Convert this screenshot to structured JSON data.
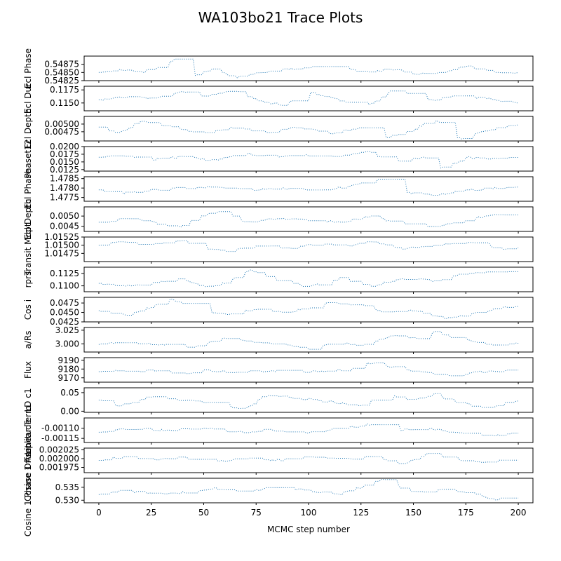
{
  "figure": {
    "title": "WA103bo21 Trace Plots",
    "xlabel": "MCMC step number"
  },
  "colors": {
    "trace": "#1f77b4",
    "frame": "#000000"
  },
  "chart_data": {
    "type": "line",
    "title": "WA103bo21 Trace Plots",
    "xlabel": "MCMC step number",
    "x_ticks": [
      "0",
      "25",
      "50",
      "75",
      "100",
      "125",
      "150",
      "175",
      "200"
    ],
    "xlim": [
      -7,
      207
    ],
    "line_style": "dotted",
    "grid": false,
    "panels": [
      {
        "ylabel": "Ecl Phase",
        "ylim": [
          0.54825,
          0.549
        ],
        "yticks": [
          "0.54825",
          "0.54850",
          "0.54875"
        ],
        "anchors": [
          [
            0,
            0.5485
          ],
          [
            10,
            0.5486
          ],
          [
            20,
            0.5485
          ],
          [
            30,
            0.5487
          ],
          [
            38,
            0.549
          ],
          [
            45,
            0.5484
          ],
          [
            55,
            0.5486
          ],
          [
            65,
            0.5483
          ],
          [
            75,
            0.5485
          ],
          [
            90,
            0.5486
          ],
          [
            110,
            0.5487
          ],
          [
            125,
            0.5485
          ],
          [
            140,
            0.5486
          ],
          [
            152,
            0.54845
          ],
          [
            165,
            0.5485
          ],
          [
            175,
            0.5487
          ],
          [
            190,
            0.5485
          ],
          [
            200,
            0.5485
          ]
        ]
      },
      {
        "ylabel": "Ecl Dur",
        "ylim": [
          0.1135,
          0.1182
        ],
        "yticks": [
          "0.1150",
          "0.1175"
        ],
        "anchors": [
          [
            0,
            0.1155
          ],
          [
            12,
            0.1162
          ],
          [
            25,
            0.1158
          ],
          [
            40,
            0.1172
          ],
          [
            50,
            0.1162
          ],
          [
            65,
            0.1175
          ],
          [
            75,
            0.1155
          ],
          [
            88,
            0.1145
          ],
          [
            100,
            0.117
          ],
          [
            115,
            0.1155
          ],
          [
            128,
            0.1142
          ],
          [
            140,
            0.1175
          ],
          [
            150,
            0.1165
          ],
          [
            160,
            0.1155
          ],
          [
            170,
            0.1165
          ],
          [
            185,
            0.1158
          ],
          [
            200,
            0.115
          ]
        ]
      },
      {
        "ylabel": "Ecl Depth",
        "ylim": [
          0.00445,
          0.00525
        ],
        "yticks": [
          "0.00475",
          "0.00500"
        ],
        "anchors": [
          [
            0,
            0.0049
          ],
          [
            10,
            0.0047
          ],
          [
            20,
            0.0051
          ],
          [
            35,
            0.0049
          ],
          [
            50,
            0.0047
          ],
          [
            65,
            0.0049
          ],
          [
            78,
            0.0047
          ],
          [
            95,
            0.0049
          ],
          [
            110,
            0.0047
          ],
          [
            128,
            0.0049
          ],
          [
            135,
            0.0045
          ],
          [
            150,
            0.0048
          ],
          [
            160,
            0.0052
          ],
          [
            172,
            0.0045
          ],
          [
            185,
            0.0048
          ],
          [
            200,
            0.005
          ]
        ]
      },
      {
        "ylabel": "Phaset12",
        "ylim": [
          0.012,
          0.02
        ],
        "yticks": [
          "0.0125",
          "0.0150",
          "0.0175",
          "0.0200"
        ],
        "anchors": [
          [
            0,
            0.0165
          ],
          [
            10,
            0.0172
          ],
          [
            25,
            0.0158
          ],
          [
            40,
            0.0168
          ],
          [
            55,
            0.0155
          ],
          [
            70,
            0.0178
          ],
          [
            85,
            0.0165
          ],
          [
            100,
            0.0172
          ],
          [
            115,
            0.0168
          ],
          [
            128,
            0.0185
          ],
          [
            140,
            0.0148
          ],
          [
            155,
            0.0165
          ],
          [
            163,
            0.0128
          ],
          [
            175,
            0.0165
          ],
          [
            190,
            0.0158
          ],
          [
            200,
            0.017
          ]
        ]
      },
      {
        "ylabel": "Ecl Phase",
        "ylim": [
          1.4773,
          1.4786
        ],
        "yticks": [
          "1.4775",
          "1.4780",
          "1.4785"
        ],
        "anchors": [
          [
            0,
            1.4779
          ],
          [
            10,
            1.4777
          ],
          [
            25,
            1.4779
          ],
          [
            40,
            1.478
          ],
          [
            55,
            1.4781
          ],
          [
            70,
            1.4779
          ],
          [
            85,
            1.478
          ],
          [
            100,
            1.4779
          ],
          [
            115,
            1.478
          ],
          [
            132,
            1.4785
          ],
          [
            145,
            1.4778
          ],
          [
            160,
            1.4776
          ],
          [
            175,
            1.4779
          ],
          [
            190,
            1.478
          ],
          [
            200,
            1.4781
          ]
        ]
      },
      {
        "ylabel": "Ecl Depth",
        "ylim": [
          0.00425,
          0.00545
        ],
        "yticks": [
          "0.0045",
          "0.0050"
        ],
        "anchors": [
          [
            0,
            0.0047
          ],
          [
            15,
            0.0049
          ],
          [
            30,
            0.0046
          ],
          [
            38,
            0.0044
          ],
          [
            45,
            0.0049
          ],
          [
            58,
            0.0053
          ],
          [
            70,
            0.0047
          ],
          [
            85,
            0.0049
          ],
          [
            100,
            0.0048
          ],
          [
            115,
            0.0047
          ],
          [
            130,
            0.005
          ],
          [
            145,
            0.0046
          ],
          [
            160,
            0.0045
          ],
          [
            175,
            0.0048
          ],
          [
            190,
            0.0051
          ],
          [
            200,
            0.005
          ]
        ]
      },
      {
        "ylabel": "Transit Mdpt",
        "ylim": [
          1.0145,
          1.01525
        ],
        "yticks": [
          "1.01475",
          "1.01500",
          "1.01525"
        ],
        "anchors": [
          [
            0,
            1.015
          ],
          [
            10,
            1.0151
          ],
          [
            25,
            1.015
          ],
          [
            40,
            1.01515
          ],
          [
            50,
            1.0149
          ],
          [
            60,
            1.0148
          ],
          [
            75,
            1.015
          ],
          [
            90,
            1.0149
          ],
          [
            105,
            1.01505
          ],
          [
            120,
            1.015
          ],
          [
            130,
            1.0151
          ],
          [
            145,
            1.0149
          ],
          [
            160,
            1.015
          ],
          [
            175,
            1.0151
          ],
          [
            190,
            1.0149
          ],
          [
            200,
            1.0149
          ]
        ]
      },
      {
        "ylabel": "rprs",
        "ylim": [
          0.1088,
          0.1138
        ],
        "yticks": [
          "0.1100",
          "0.1125"
        ],
        "anchors": [
          [
            0,
            0.1105
          ],
          [
            10,
            0.11
          ],
          [
            25,
            0.1105
          ],
          [
            40,
            0.1115
          ],
          [
            50,
            0.1098
          ],
          [
            60,
            0.1105
          ],
          [
            72,
            0.1132
          ],
          [
            85,
            0.111
          ],
          [
            100,
            0.1098
          ],
          [
            115,
            0.1115
          ],
          [
            130,
            0.11
          ],
          [
            145,
            0.1115
          ],
          [
            160,
            0.111
          ],
          [
            175,
            0.1125
          ],
          [
            190,
            0.1128
          ],
          [
            200,
            0.113
          ]
        ]
      },
      {
        "ylabel": "Cos i",
        "ylim": [
          0.0425,
          0.049
        ],
        "yticks": [
          "0.0425",
          "0.0450",
          "0.0475"
        ],
        "anchors": [
          [
            0,
            0.0455
          ],
          [
            10,
            0.044
          ],
          [
            20,
            0.0455
          ],
          [
            35,
            0.0485
          ],
          [
            45,
            0.046
          ],
          [
            60,
            0.0445
          ],
          [
            75,
            0.046
          ],
          [
            90,
            0.045
          ],
          [
            110,
            0.0475
          ],
          [
            125,
            0.047
          ],
          [
            135,
            0.045
          ],
          [
            150,
            0.0455
          ],
          [
            165,
            0.0435
          ],
          [
            180,
            0.0448
          ],
          [
            192,
            0.0465
          ],
          [
            200,
            0.0465
          ]
        ]
      },
      {
        "ylabel": "a/Rs",
        "ylim": [
          2.985,
          3.03
        ],
        "yticks": [
          "3.000",
          "3.025"
        ],
        "anchors": [
          [
            0,
            3.0
          ],
          [
            15,
            3.002
          ],
          [
            30,
            2.998
          ],
          [
            45,
            2.993
          ],
          [
            60,
            3.01
          ],
          [
            75,
            3.002
          ],
          [
            90,
            2.998
          ],
          [
            100,
            2.99
          ],
          [
            115,
            3.005
          ],
          [
            125,
            2.995
          ],
          [
            140,
            3.015
          ],
          [
            155,
            3.008
          ],
          [
            160,
            3.022
          ],
          [
            170,
            3.01
          ],
          [
            185,
            2.998
          ],
          [
            200,
            3.001
          ]
        ]
      },
      {
        "ylabel": "Flux",
        "ylim": [
          9165,
          9193
        ],
        "yticks": [
          "9170",
          "9180",
          "9190"
        ],
        "anchors": [
          [
            0,
            9178
          ],
          [
            15,
            9178
          ],
          [
            25,
            9178
          ],
          [
            40,
            9175
          ],
          [
            50,
            9178
          ],
          [
            65,
            9176
          ],
          [
            80,
            9178
          ],
          [
            100,
            9177
          ],
          [
            120,
            9179
          ],
          [
            130,
            9188
          ],
          [
            140,
            9182
          ],
          [
            155,
            9176
          ],
          [
            170,
            9172
          ],
          [
            180,
            9177
          ],
          [
            200,
            9178
          ]
        ]
      },
      {
        "ylabel": "LD c1",
        "ylim": [
          -0.003,
          0.063
        ],
        "yticks": [
          "0.00",
          "0.05"
        ],
        "anchors": [
          [
            0,
            0.03
          ],
          [
            10,
            0.015
          ],
          [
            25,
            0.04
          ],
          [
            35,
            0.03
          ],
          [
            50,
            0.025
          ],
          [
            70,
            0.005
          ],
          [
            80,
            0.045
          ],
          [
            95,
            0.035
          ],
          [
            110,
            0.025
          ],
          [
            125,
            0.015
          ],
          [
            135,
            0.05
          ],
          [
            150,
            0.03
          ],
          [
            160,
            0.045
          ],
          [
            170,
            0.025
          ],
          [
            185,
            0.008
          ],
          [
            200,
            0.03
          ]
        ]
      },
      {
        "ylabel": "Linear Term",
        "ylim": [
          -0.00117,
          -0.00105
        ],
        "yticks": [
          "-0.00115",
          "-0.00110"
        ],
        "anchors": [
          [
            0,
            -0.00112
          ],
          [
            15,
            -0.0011
          ],
          [
            30,
            -0.00111
          ],
          [
            50,
            -0.0011
          ],
          [
            65,
            -0.00112
          ],
          [
            80,
            -0.00111
          ],
          [
            100,
            -0.00112
          ],
          [
            115,
            -0.0011
          ],
          [
            130,
            -0.00108
          ],
          [
            140,
            -0.00111
          ],
          [
            155,
            -0.0011
          ],
          [
            170,
            -0.00112
          ],
          [
            185,
            -0.00114
          ],
          [
            200,
            -0.00112
          ]
        ]
      },
      {
        "ylabel": "Cosine 1 Amplitude",
        "ylim": [
          0.00196,
          0.00203
        ],
        "yticks": [
          "0.001975",
          "0.002000",
          "0.002025"
        ],
        "anchors": [
          [
            0,
            0.001995
          ],
          [
            10,
            0.002005
          ],
          [
            25,
            0.001998
          ],
          [
            40,
            0.002003
          ],
          [
            55,
            0.00199
          ],
          [
            70,
            0.002
          ],
          [
            85,
            0.001995
          ],
          [
            100,
            0.002003
          ],
          [
            115,
            0.001998
          ],
          [
            130,
            0.002005
          ],
          [
            145,
            0.001985
          ],
          [
            158,
            0.002018
          ],
          [
            170,
            0.001995
          ],
          [
            185,
            0.00199
          ],
          [
            200,
            0.001998
          ]
        ]
      },
      {
        "ylabel": "Cosine 1 Phase Offset",
        "ylim": [
          0.529,
          0.5385
        ],
        "yticks": [
          "0.530",
          "0.535"
        ],
        "anchors": [
          [
            0,
            0.532
          ],
          [
            10,
            0.534
          ],
          [
            25,
            0.5325
          ],
          [
            40,
            0.533
          ],
          [
            55,
            0.5345
          ],
          [
            70,
            0.5335
          ],
          [
            85,
            0.535
          ],
          [
            100,
            0.5335
          ],
          [
            115,
            0.5325
          ],
          [
            135,
            0.538
          ],
          [
            150,
            0.533
          ],
          [
            165,
            0.5345
          ],
          [
            180,
            0.532
          ],
          [
            190,
            0.53
          ],
          [
            200,
            0.5325
          ]
        ]
      }
    ]
  }
}
